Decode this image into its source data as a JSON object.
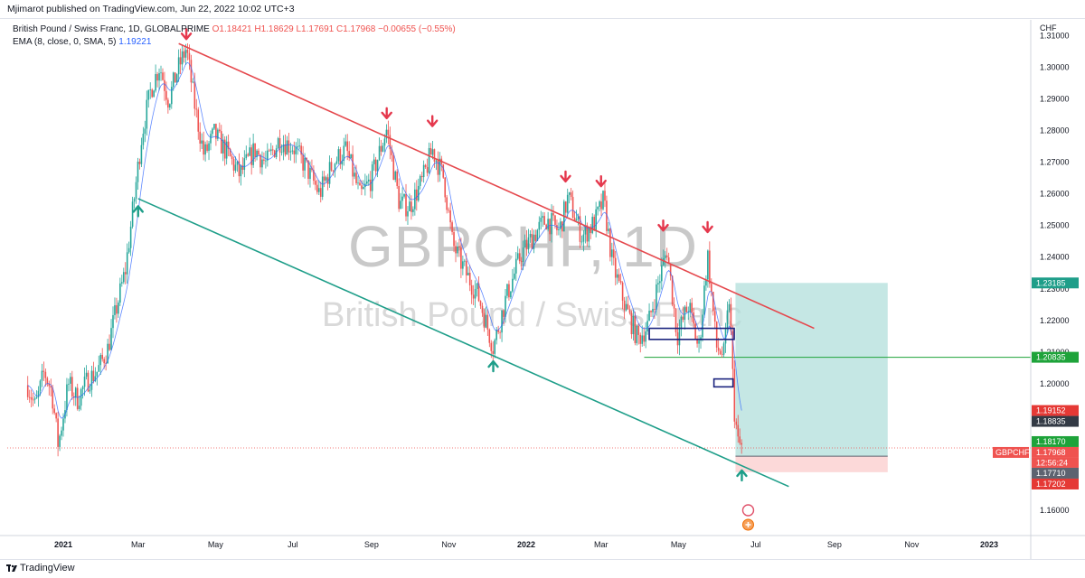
{
  "publisher": "Mjimarot published on TradingView.com, Jun 22, 2022 10:02 UTC+3",
  "legend": {
    "symbol_line": "British Pound / Swiss Franc, 1D, GLOBALPRIME",
    "ohlc": "O1.18421 H1.18629 L1.17691 C1.17968 −0.00655 (−0.55%)",
    "ema": "EMA (8, close, 0, SMA, 5)",
    "ema_value": "1.19221"
  },
  "watermark": {
    "main": "GBPCHF, 1D",
    "sub": "British Pound / Swiss Franc"
  },
  "footer": {
    "brand": "TradingView"
  },
  "colors": {
    "up": "#26a69a",
    "down": "#ef5350",
    "resistance": "#e5484d",
    "support": "#1e9e89",
    "box": "#1a237e",
    "target": "#b2dfdb",
    "stop": "#fcd5d5"
  },
  "chart_data": {
    "type": "candlestick",
    "currency": "CHF",
    "ylim": [
      1.152,
      1.315
    ],
    "y_ticks": [
      "1.31000",
      "1.30000",
      "1.29000",
      "1.28000",
      "1.27000",
      "1.26000",
      "1.25000",
      "1.24000",
      "1.23000",
      "1.22000",
      "1.21000",
      "1.20000",
      "1.19000",
      "1.18000",
      "1.17000",
      "1.16000"
    ],
    "x_ticks": [
      "2021",
      "Mar",
      "May",
      "Jul",
      "Sep",
      "Nov",
      "2022",
      "Mar",
      "May",
      "Jul",
      "Sep",
      "Nov",
      "2023"
    ],
    "price_tags": [
      {
        "label": "1.23185",
        "value": 1.23185,
        "color": "#1e9e89"
      },
      {
        "label": "1.20835",
        "value": 1.20835,
        "color": "#1ea33a"
      },
      {
        "label": "1.19152",
        "value": 1.19152,
        "color": "#e53935"
      },
      {
        "label": "1.18835",
        "value": 1.18835,
        "color": "#333a45"
      },
      {
        "label": "1.18170",
        "value": 1.1817,
        "color": "#1ea33a"
      },
      {
        "label": "1.17968",
        "value": 1.17968,
        "color": "#ef5350",
        "symbol": "GBPCHF",
        "countdown": "12:56:24"
      },
      {
        "label": "1.17710",
        "value": 1.1771,
        "color": "#5d6370"
      },
      {
        "label": "1.17202",
        "value": 1.17202,
        "color": "#e53935"
      }
    ],
    "trendlines": [
      {
        "name": "resistance",
        "from": [
          "2021-04-02",
          1.3075
        ],
        "to": [
          "2022-08-16",
          1.2175
        ]
      },
      {
        "name": "support",
        "from": [
          "2021-03-01",
          1.2585
        ],
        "to": [
          "2022-07-27",
          1.1675
        ]
      }
    ],
    "markers_down": [
      [
        "2021-04-08",
        1.3095
      ],
      [
        "2021-09-13",
        1.2845
      ],
      [
        "2021-10-19",
        1.282
      ],
      [
        "2022-02-01",
        1.2645
      ],
      [
        "2022-03-01",
        1.263
      ],
      [
        "2022-04-19",
        1.249
      ],
      [
        "2022-05-24",
        1.2485
      ]
    ],
    "markers_up": [
      [
        "2021-03-01",
        1.2555
      ],
      [
        "2021-12-06",
        1.2065
      ],
      [
        "2022-06-20",
        1.172
      ]
    ],
    "boxes": [
      {
        "x0": "2022-04-08",
        "x1": "2022-06-14",
        "y0": 1.214,
        "y1": 1.2175
      },
      {
        "x0": "2022-05-29",
        "x1": "2022-06-13",
        "y0": 1.199,
        "y1": 1.2015
      }
    ],
    "horizontal_line": {
      "value": 1.20835,
      "from": "2022-04-04"
    },
    "long_position": {
      "from": "2022-06-15",
      "to": "2022-10-13",
      "entry": 1.1771,
      "target": 1.23185,
      "stop": 1.17202
    },
    "last_close": 1.17968,
    "ohlc_path": [
      [
        "2020-12-04",
        1.1995
      ],
      [
        "2020-12-10",
        1.1925
      ],
      [
        "2020-12-17",
        1.2038
      ],
      [
        "2020-12-23",
        1.1975
      ],
      [
        "2020-12-28",
        1.1805
      ],
      [
        "2021-01-05",
        1.2
      ],
      [
        "2021-01-12",
        1.195
      ],
      [
        "2021-01-20",
        1.201
      ],
      [
        "2021-01-28",
        1.204
      ],
      [
        "2021-02-05",
        1.211
      ],
      [
        "2021-02-12",
        1.224
      ],
      [
        "2021-02-19",
        1.236
      ],
      [
        "2021-02-25",
        1.2555
      ],
      [
        "2021-03-04",
        1.279
      ],
      [
        "2021-03-11",
        1.293
      ],
      [
        "2021-03-18",
        1.3005
      ],
      [
        "2021-03-25",
        1.2895
      ],
      [
        "2021-04-01",
        1.299
      ],
      [
        "2021-04-08",
        1.306
      ],
      [
        "2021-04-15",
        1.287
      ],
      [
        "2021-04-22",
        1.272
      ],
      [
        "2021-04-30",
        1.279
      ],
      [
        "2021-05-10",
        1.273
      ],
      [
        "2021-05-20",
        1.266
      ],
      [
        "2021-06-01",
        1.274
      ],
      [
        "2021-06-10",
        1.2695
      ],
      [
        "2021-06-20",
        1.277
      ],
      [
        "2021-07-01",
        1.275
      ],
      [
        "2021-07-12",
        1.268
      ],
      [
        "2021-07-22",
        1.26
      ],
      [
        "2021-08-02",
        1.27
      ],
      [
        "2021-08-12",
        1.274
      ],
      [
        "2021-08-23",
        1.259
      ],
      [
        "2021-09-01",
        1.265
      ],
      [
        "2021-09-13",
        1.2805
      ],
      [
        "2021-09-23",
        1.257
      ],
      [
        "2021-10-01",
        1.256
      ],
      [
        "2021-10-11",
        1.264
      ],
      [
        "2021-10-19",
        1.274
      ],
      [
        "2021-10-28",
        1.265
      ],
      [
        "2021-11-04",
        1.244
      ],
      [
        "2021-11-15",
        1.2345
      ],
      [
        "2021-11-24",
        1.228
      ],
      [
        "2021-12-06",
        1.2115
      ],
      [
        "2021-12-16",
        1.227
      ],
      [
        "2021-12-28",
        1.241
      ],
      [
        "2022-01-07",
        1.247
      ],
      [
        "2022-01-17",
        1.252
      ],
      [
        "2022-01-27",
        1.248
      ],
      [
        "2022-02-03",
        1.259
      ],
      [
        "2022-02-14",
        1.2465
      ],
      [
        "2022-02-24",
        1.251
      ],
      [
        "2022-03-03",
        1.258
      ],
      [
        "2022-03-10",
        1.238
      ],
      [
        "2022-03-20",
        1.2245
      ],
      [
        "2022-03-30",
        1.214
      ],
      [
        "2022-04-07",
        1.2185
      ],
      [
        "2022-04-14",
        1.23
      ],
      [
        "2022-04-22",
        1.2425
      ],
      [
        "2022-04-30",
        1.215
      ],
      [
        "2022-05-09",
        1.225
      ],
      [
        "2022-05-17",
        1.2105
      ],
      [
        "2022-05-24",
        1.241
      ],
      [
        "2022-05-31",
        1.2115
      ],
      [
        "2022-06-06",
        1.209
      ],
      [
        "2022-06-10",
        1.227
      ],
      [
        "2022-06-14",
        1.192
      ],
      [
        "2022-06-17",
        1.181
      ],
      [
        "2022-06-21",
        1.1797
      ]
    ]
  }
}
